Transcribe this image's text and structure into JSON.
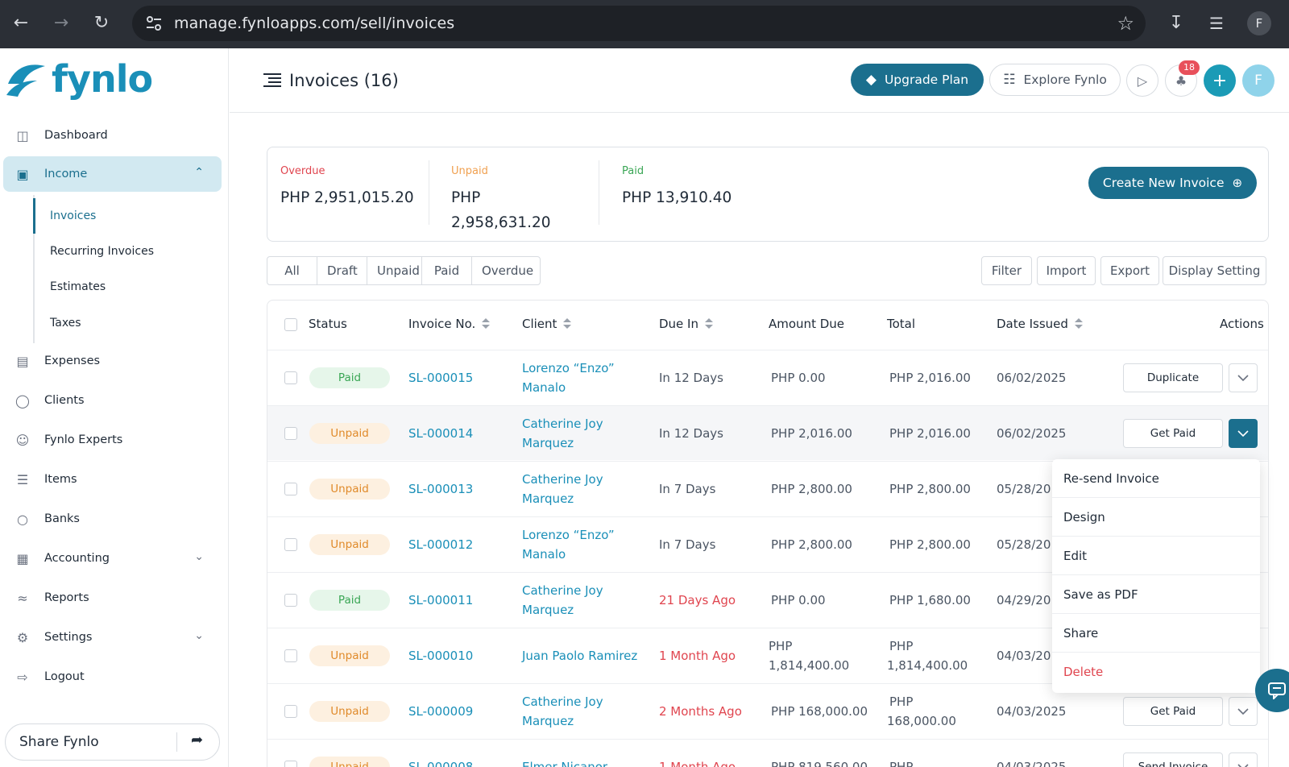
{
  "browser": {
    "url": "manage.fynloapps.com/sell/invoices",
    "profile_initial": "F"
  },
  "brand": {
    "name": "fynlo",
    "color": "#1a8fb8",
    "accent": "#1b6f8e"
  },
  "sidebar": {
    "items": [
      {
        "label": "Dashboard",
        "icon": "monitor-icon"
      },
      {
        "label": "Income",
        "icon": "shopping-bag-icon",
        "expanded": true
      },
      {
        "label": "Expenses",
        "icon": "wallet-icon"
      },
      {
        "label": "Clients",
        "icon": "globe-icon"
      },
      {
        "label": "Fynlo Experts",
        "icon": "user-icon"
      },
      {
        "label": "Items",
        "icon": "layers-icon"
      },
      {
        "label": "Banks",
        "icon": "piggy-bank-icon"
      },
      {
        "label": "Accounting",
        "icon": "grid-icon"
      },
      {
        "label": "Reports",
        "icon": "chart-icon"
      },
      {
        "label": "Settings",
        "icon": "gear-icon"
      },
      {
        "label": "Logout",
        "icon": "logout-icon"
      }
    ],
    "income_sub": [
      "Invoices",
      "Recurring Invoices",
      "Estimates",
      "Taxes"
    ],
    "share_label": "Share Fynlo"
  },
  "header": {
    "title": "Invoices (16)",
    "upgrade_label": "Upgrade Plan",
    "explore_label": "Explore Fynlo",
    "notification_count": "18",
    "avatar_initial": "F"
  },
  "summary": {
    "overdue_label": "Overdue",
    "overdue_value": "PHP 2,951,015.20",
    "unpaid_label": "Unpaid",
    "unpaid_value_line1": "PHP",
    "unpaid_value_line2": "2,958,631.20",
    "paid_label": "Paid",
    "paid_value": "PHP 13,910.40",
    "create_label": "Create New Invoice",
    "colors": {
      "overdue": "#e0454f",
      "unpaid": "#f0a050",
      "paid": "#3aa655"
    }
  },
  "tabs": [
    "All",
    "Draft",
    "Unpaid",
    "Paid",
    "Overdue"
  ],
  "tools": [
    "Filter",
    "Import",
    "Export",
    "Display Setting"
  ],
  "table": {
    "headers": {
      "status": "Status",
      "invoice_no": "Invoice No.",
      "client": "Client",
      "due_in": "Due In",
      "amount_due": "Amount Due",
      "total": "Total",
      "date_issued": "Date Issued",
      "actions": "Actions"
    },
    "rows": [
      {
        "status": "Paid",
        "invoice": "SL-000015",
        "client1": "Lorenzo “Enzo”",
        "client2": "Manalo",
        "due": "In 12 Days",
        "amount1": "PHP 0.00",
        "amount2": "",
        "total1": "PHP 2,016.00",
        "total2": "",
        "date": "06/02/2025",
        "action": "Duplicate"
      },
      {
        "status": "Unpaid",
        "invoice": "SL-000014",
        "client1": "Catherine Joy",
        "client2": "Marquez",
        "due": "In 12 Days",
        "amount1": "PHP 2,016.00",
        "amount2": "",
        "total1": "PHP 2,016.00",
        "total2": "",
        "date": "06/02/2025",
        "action": "Get Paid"
      },
      {
        "status": "Unpaid",
        "invoice": "SL-000013",
        "client1": "Catherine Joy",
        "client2": "Marquez",
        "due": "In 7 Days",
        "amount1": "PHP 2,800.00",
        "amount2": "",
        "total1": "PHP 2,800.00",
        "total2": "",
        "date": "05/28/20",
        "action": ""
      },
      {
        "status": "Unpaid",
        "invoice": "SL-000012",
        "client1": "Lorenzo “Enzo”",
        "client2": "Manalo",
        "due": "In 7 Days",
        "amount1": "PHP 2,800.00",
        "amount2": "",
        "total1": "PHP 2,800.00",
        "total2": "",
        "date": "05/28/20",
        "action": ""
      },
      {
        "status": "Paid",
        "invoice": "SL-000011",
        "client1": "Catherine Joy",
        "client2": "Marquez",
        "due": "21 Days Ago",
        "amount1": "PHP 0.00",
        "amount2": "",
        "total1": "PHP 1,680.00",
        "total2": "",
        "date": "04/29/20",
        "action": ""
      },
      {
        "status": "Unpaid",
        "invoice": "SL-000010",
        "client1": "Juan Paolo Ramirez",
        "client2": "",
        "due": "1 Month Ago",
        "amount1": "PHP",
        "amount2": "1,814,400.00",
        "total1": "PHP",
        "total2": "1,814,400.00",
        "date": "04/03/20",
        "action": ""
      },
      {
        "status": "Unpaid",
        "invoice": "SL-000009",
        "client1": "Catherine Joy",
        "client2": "Marquez",
        "due": "2 Months Ago",
        "amount1": "PHP 168,000.00",
        "amount2": "",
        "total1": "PHP",
        "total2": "168,000.00",
        "date": "04/03/2025",
        "action": "Get Paid"
      },
      {
        "status": "Unpaid",
        "invoice": "SL-000008",
        "client1": "Elmer Nicanor",
        "client2": "",
        "due": "1 Month Ago",
        "amount1": "PHP 819,560.00",
        "amount2": "",
        "total1": "PHP",
        "total2": "",
        "date": "04/03/2025",
        "action": "Send Invoice"
      }
    ]
  },
  "dropdown_menu": [
    "Re-send Invoice",
    "Design",
    "Edit",
    "Save as PDF",
    "Share",
    "Delete"
  ]
}
